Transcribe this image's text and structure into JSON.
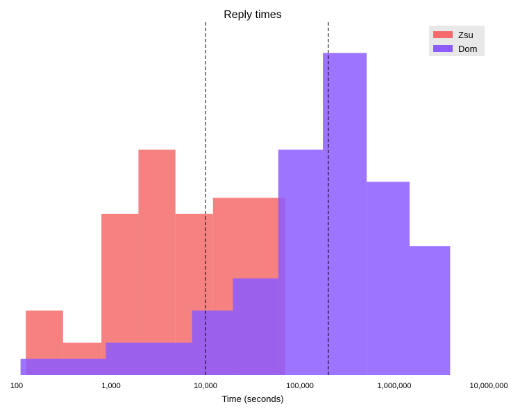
{
  "chart_data": {
    "type": "histogram",
    "title": "Reply times",
    "xlabel": "Time (seconds)",
    "ylabel": "",
    "x_scale": "log",
    "xlim": [
      100,
      10000000
    ],
    "ylim": [
      0,
      11
    ],
    "x_ticks": [
      100,
      1000,
      10000,
      100000,
      1000000,
      10000000
    ],
    "x_tick_labels": [
      "100",
      "1,000",
      "10,000",
      "100,000",
      "1,000,000",
      "10,000,000"
    ],
    "grid": false,
    "legend_position": "top-right",
    "series": [
      {
        "name": "Zsu",
        "color": "#f56b6b",
        "bins": [
          {
            "x0": 125,
            "x1": 310,
            "value": 2
          },
          {
            "x0": 310,
            "x1": 790,
            "value": 1
          },
          {
            "x0": 790,
            "x1": 1950,
            "value": 5
          },
          {
            "x0": 1950,
            "x1": 4800,
            "value": 7
          },
          {
            "x0": 4800,
            "x1": 12000,
            "value": 5
          },
          {
            "x0": 12000,
            "x1": 70000,
            "value": 5.5
          },
          {
            "x0": 70000,
            "x1": 190000,
            "value": 0
          }
        ]
      },
      {
        "name": "Dom",
        "color": "#8c5cff",
        "bins": [
          {
            "x0": 110,
            "x1": 880,
            "value": 0.5
          },
          {
            "x0": 880,
            "x1": 7200,
            "value": 1
          },
          {
            "x0": 7200,
            "x1": 19500,
            "value": 2
          },
          {
            "x0": 19500,
            "x1": 59000,
            "value": 3
          },
          {
            "x0": 59000,
            "x1": 175000,
            "value": 7
          },
          {
            "x0": 175000,
            "x1": 510000,
            "value": 10
          },
          {
            "x0": 510000,
            "x1": 1450000,
            "value": 6
          },
          {
            "x0": 1450000,
            "x1": 3900000,
            "value": 4
          }
        ]
      }
    ],
    "reference_lines": [
      10000,
      200000
    ],
    "reference_line_style": "dashed"
  }
}
